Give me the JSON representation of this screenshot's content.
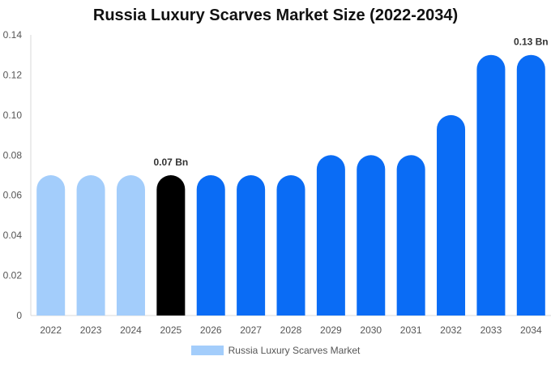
{
  "chart_data": {
    "type": "bar",
    "title": "Russia Luxury Scarves Market Size (2022-2034)",
    "xlabel": "",
    "ylabel": "",
    "categories": [
      "2022",
      "2023",
      "2024",
      "2025",
      "2026",
      "2027",
      "2028",
      "2029",
      "2030",
      "2031",
      "2032",
      "2033",
      "2034"
    ],
    "series": [
      {
        "name": "Russia Luxury Scarves Market",
        "values": [
          0.07,
          0.07,
          0.07,
          0.07,
          0.07,
          0.07,
          0.07,
          0.08,
          0.08,
          0.08,
          0.1,
          0.13,
          0.13
        ]
      }
    ],
    "ylim": [
      0,
      0.14
    ],
    "yticks": [
      "0",
      "0.02",
      "0.04",
      "0.06",
      "0.08",
      "0.10",
      "0.12",
      "0.14"
    ],
    "bar_colors": [
      "#a3cdfb",
      "#a3cdfb",
      "#a3cdfb",
      "#000000",
      "#0a6cf5",
      "#0a6cf5",
      "#0a6cf5",
      "#0a6cf5",
      "#0a6cf5",
      "#0a6cf5",
      "#0a6cf5",
      "#0a6cf5",
      "#0a6cf5"
    ],
    "data_labels": [
      {
        "category": "2025",
        "text": "0.07 Bn"
      },
      {
        "category": "2034",
        "text": "0.13 Bn"
      }
    ],
    "legend": {
      "position": "bottom",
      "color": "#a3cdfb"
    },
    "grid": false
  }
}
